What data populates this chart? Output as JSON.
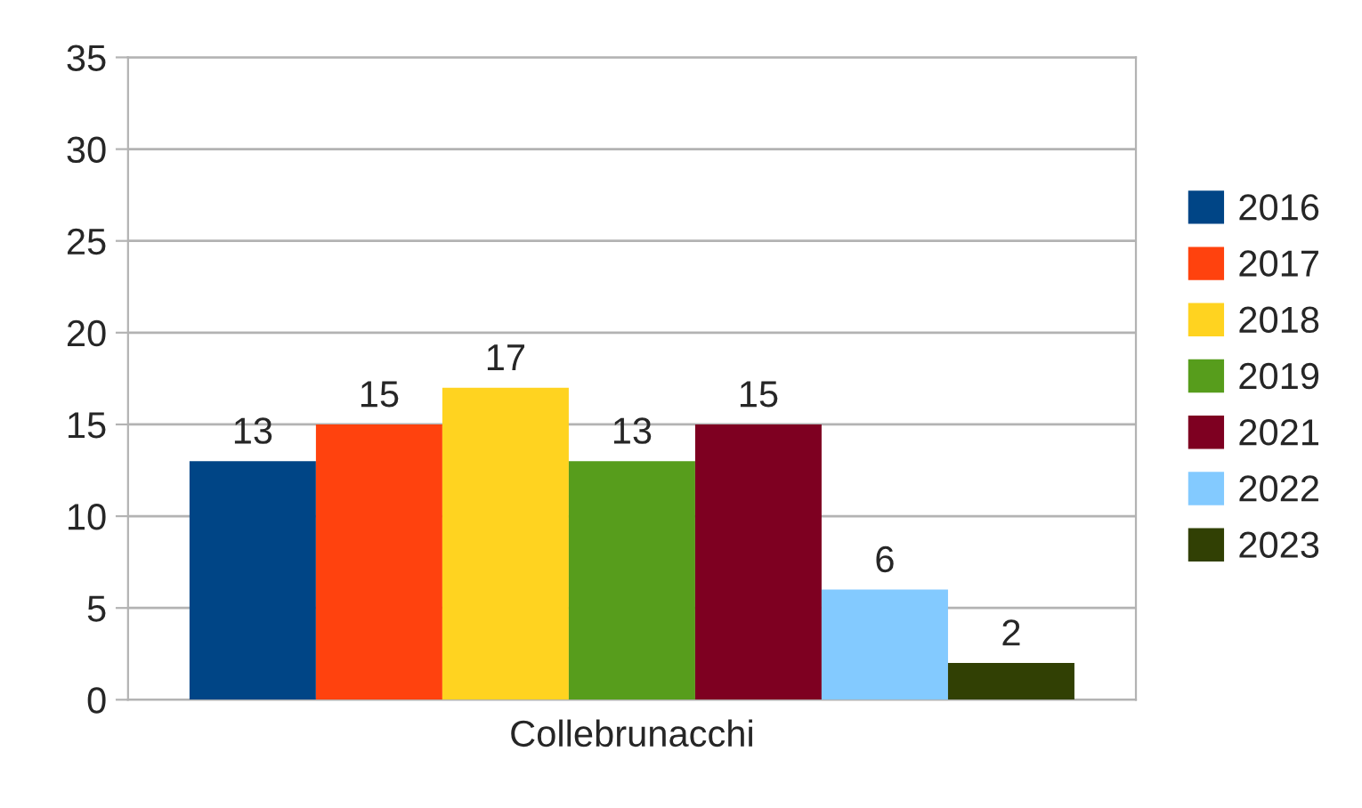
{
  "chart_data": {
    "type": "bar",
    "categories": [
      "Collebrunacchi"
    ],
    "series": [
      {
        "name": "2016",
        "color": "#004586",
        "values": [
          13
        ]
      },
      {
        "name": "2017",
        "color": "#ff420e",
        "values": [
          15
        ]
      },
      {
        "name": "2018",
        "color": "#ffd320",
        "values": [
          17
        ]
      },
      {
        "name": "2019",
        "color": "#579d1c",
        "values": [
          13
        ]
      },
      {
        "name": "2021",
        "color": "#7e0021",
        "values": [
          15
        ]
      },
      {
        "name": "2022",
        "color": "#83caff",
        "values": [
          6
        ]
      },
      {
        "name": "2023",
        "color": "#314004",
        "values": [
          2
        ]
      }
    ],
    "ylim": [
      0,
      35
    ],
    "yticks": [
      0,
      5,
      10,
      15,
      20,
      25,
      30,
      35
    ],
    "grid": "y",
    "legend": "right",
    "data_labels": true
  }
}
